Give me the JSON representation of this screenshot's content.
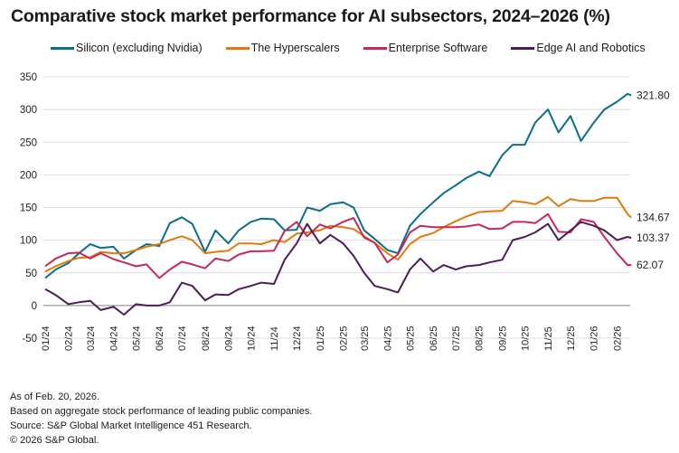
{
  "chart_data": {
    "type": "line",
    "title": "Comparative stock market performance for AI subsectors, 2024–2026 (%)",
    "xlabel": "",
    "ylabel": "",
    "ylim": [
      -50,
      350
    ],
    "yticks": [
      -50,
      0,
      50,
      100,
      150,
      200,
      250,
      300,
      350
    ],
    "xtick_labels": [
      "01/24",
      "02/24",
      "03/24",
      "04/24",
      "05/24",
      "06/24",
      "07/24",
      "08/24",
      "09/24",
      "10/24",
      "11/24",
      "12/24",
      "01/25",
      "02/25",
      "03/25",
      "04/25",
      "05/25",
      "06/25",
      "07/25",
      "08/25",
      "09/25",
      "10/25",
      "11/25",
      "12/25",
      "01/26",
      "02/26"
    ],
    "grid": true,
    "legend_position": "top",
    "dates": [
      "2024-01-01",
      "2024-01-15",
      "2024-02-01",
      "2024-02-15",
      "2024-03-01",
      "2024-03-15",
      "2024-04-01",
      "2024-04-15",
      "2024-05-01",
      "2024-05-15",
      "2024-06-01",
      "2024-06-15",
      "2024-07-01",
      "2024-07-15",
      "2024-08-01",
      "2024-08-15",
      "2024-09-01",
      "2024-09-15",
      "2024-10-01",
      "2024-10-15",
      "2024-11-01",
      "2024-11-15",
      "2024-12-01",
      "2024-12-15",
      "2025-01-01",
      "2025-01-15",
      "2025-02-01",
      "2025-02-15",
      "2025-03-01",
      "2025-03-15",
      "2025-04-01",
      "2025-04-15",
      "2025-05-01",
      "2025-05-15",
      "2025-06-01",
      "2025-06-15",
      "2025-07-01",
      "2025-07-15",
      "2025-08-01",
      "2025-08-15",
      "2025-09-01",
      "2025-09-15",
      "2025-10-01",
      "2025-10-15",
      "2025-11-01",
      "2025-11-15",
      "2025-12-01",
      "2025-12-15",
      "2026-01-01",
      "2026-01-15",
      "2026-02-01",
      "2026-02-15",
      "2026-02-20"
    ],
    "series": [
      {
        "name": "Silicon (excluding Nvidia)",
        "color": "#0b6e8a",
        "end_label": "321.80",
        "values": [
          42,
          55,
          65,
          80,
          94,
          88,
          90,
          72,
          85,
          94,
          91,
          126,
          135,
          125,
          82,
          115,
          95,
          115,
          128,
          133,
          132,
          115,
          116,
          150,
          145,
          155,
          158,
          150,
          115,
          102,
          85,
          80,
          122,
          140,
          158,
          172,
          184,
          195,
          205,
          198,
          230,
          246,
          246,
          280,
          300,
          265,
          290,
          252,
          280,
          300,
          312,
          324,
          321.8
        ]
      },
      {
        "name": "The Hyperscalers",
        "color": "#e07b0b",
        "end_label": "134.67",
        "values": [
          52,
          60,
          68,
          73,
          74,
          82,
          80,
          80,
          85,
          90,
          94,
          100,
          106,
          100,
          80,
          82,
          84,
          95,
          95,
          94,
          100,
          97,
          110,
          112,
          115,
          122,
          120,
          117,
          106,
          96,
          80,
          70,
          94,
          105,
          111,
          120,
          129,
          136,
          143,
          144,
          145,
          160,
          158,
          155,
          166,
          152,
          163,
          160,
          160,
          165,
          165,
          140,
          134.67
        ]
      },
      {
        "name": "Enterprise Software",
        "color": "#c5295a",
        "end_label": "62.07",
        "values": [
          60,
          72,
          80,
          81,
          72,
          80,
          71,
          66,
          60,
          63,
          42,
          55,
          67,
          63,
          57,
          72,
          68,
          78,
          83,
          83,
          84,
          114,
          128,
          106,
          124,
          118,
          128,
          134,
          104,
          96,
          66,
          78,
          112,
          122,
          120,
          120,
          120,
          121,
          124,
          117,
          118,
          128,
          128,
          126,
          140,
          113,
          112,
          132,
          128,
          105,
          80,
          62,
          62.07
        ]
      },
      {
        "name": "Edge AI and Robotics",
        "color": "#4b1d59",
        "end_label": "103.37",
        "values": [
          25,
          16,
          2,
          5,
          7,
          -7,
          -2,
          -14,
          2,
          0,
          0,
          5,
          35,
          30,
          8,
          17,
          16,
          25,
          30,
          35,
          33,
          70,
          95,
          125,
          95,
          108,
          95,
          76,
          50,
          30,
          25,
          20,
          55,
          72,
          52,
          62,
          55,
          60,
          62,
          66,
          70,
          100,
          105,
          112,
          125,
          100,
          115,
          128,
          122,
          115,
          100,
          105,
          103.37
        ]
      }
    ]
  },
  "footer": {
    "as_of": "As of Feb. 20, 2026.",
    "note": "Based on aggregate stock performance of leading public companies.",
    "source": "Source: S&P Global Market Intelligence 451 Research.",
    "copyright": "© 2026 S&P Global."
  }
}
